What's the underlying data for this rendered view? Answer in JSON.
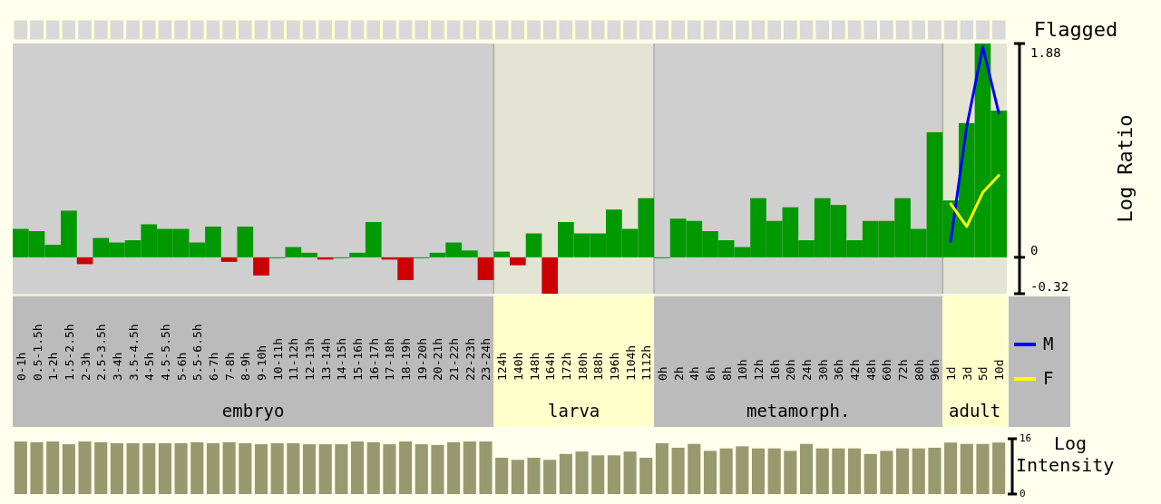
{
  "chart_data": [
    {
      "type": "bar",
      "ylabel": "Log Ratio",
      "categories": [
        "0-1h",
        "0.5-1.5h",
        "1-2h",
        "1.5-2.5h",
        "2-3h",
        "2.5-3.5h",
        "3-4h",
        "3.5-4.5h",
        "4-5h",
        "4.5-5.5h",
        "5-6h",
        "5.5-6.5h",
        "6-7h",
        "7-8h",
        "8-9h",
        "9-10h",
        "10-11h",
        "11-12h",
        "12-13h",
        "13-14h",
        "14-15h",
        "15-16h",
        "16-17h",
        "17-18h",
        "18-19h",
        "19-20h",
        "20-21h",
        "21-22h",
        "22-23h",
        "23-24h",
        "124h",
        "140h",
        "148h",
        "164h",
        "172h",
        "180h",
        "188h",
        "196h",
        "1104h",
        "1112h",
        "0h",
        "2h",
        "4h",
        "6h",
        "8h",
        "10h",
        "12h",
        "16h",
        "20h",
        "24h",
        "30h",
        "36h",
        "42h",
        "48h",
        "60h",
        "72h",
        "80h",
        "96h",
        "1d",
        "3d",
        "5d",
        "10d"
      ],
      "series": [
        {
          "type": "bar",
          "values": [
            0.25,
            0.23,
            0.11,
            0.41,
            -0.06,
            0.17,
            0.13,
            0.15,
            0.29,
            0.25,
            0.25,
            0.13,
            0.27,
            -0.04,
            0.27,
            -0.16,
            0,
            0.09,
            0.04,
            -0.02,
            0,
            0.04,
            0.31,
            -0.02,
            -0.2,
            0,
            0.04,
            0.13,
            0.06,
            -0.2,
            0.05,
            -0.07,
            0.21,
            -0.32,
            0.31,
            0.21,
            0.21,
            0.42,
            0.25,
            0.52,
            0,
            0.34,
            0.32,
            0.23,
            0.15,
            0.09,
            0.52,
            0.32,
            0.44,
            0.15,
            0.52,
            0.46,
            0.15,
            0.32,
            0.32,
            0.52,
            0.25,
            1.1,
            0.5,
            1.18,
            1.88,
            1.29
          ],
          "colors": [
            "#009900",
            "#009900",
            "#009900",
            "#009900",
            "#cc0000",
            "#009900",
            "#009900",
            "#009900",
            "#009900",
            "#009900",
            "#009900",
            "#009900",
            "#009900",
            "#cc0000",
            "#009900",
            "#cc0000",
            "#009900",
            "#009900",
            "#009900",
            "#cc0000",
            "#009900",
            "#009900",
            "#009900",
            "#cc0000",
            "#cc0000",
            "#009900",
            "#009900",
            "#009900",
            "#009900",
            "#cc0000",
            "#009900",
            "#cc0000",
            "#009900",
            "#cc0000",
            "#009900",
            "#009900",
            "#009900",
            "#009900",
            "#009900",
            "#009900",
            "#009900",
            "#009900",
            "#009900",
            "#009900",
            "#009900",
            "#009900",
            "#009900",
            "#009900",
            "#009900",
            "#009900",
            "#009900",
            "#009900",
            "#009900",
            "#009900",
            "#009900",
            "#009900",
            "#009900",
            "#009900",
            "#009900",
            "#009900",
            "#009900",
            "#009900"
          ]
        },
        {
          "type": "line",
          "name": "M",
          "color": "#0000ff",
          "values": [
            null,
            null,
            null,
            null,
            null,
            null,
            null,
            null,
            null,
            null,
            null,
            null,
            null,
            null,
            null,
            null,
            null,
            null,
            null,
            null,
            null,
            null,
            null,
            null,
            null,
            null,
            null,
            null,
            null,
            null,
            null,
            null,
            null,
            null,
            null,
            null,
            null,
            null,
            null,
            null,
            null,
            null,
            null,
            null,
            null,
            null,
            null,
            null,
            null,
            null,
            null,
            null,
            null,
            null,
            null,
            null,
            null,
            null,
            0.14,
            1.15,
            1.85,
            1.27
          ]
        },
        {
          "type": "line",
          "name": "F",
          "color": "#ffff00",
          "values": [
            null,
            null,
            null,
            null,
            null,
            null,
            null,
            null,
            null,
            null,
            null,
            null,
            null,
            null,
            null,
            null,
            null,
            null,
            null,
            null,
            null,
            null,
            null,
            null,
            null,
            null,
            null,
            null,
            null,
            null,
            null,
            null,
            null,
            null,
            null,
            null,
            null,
            null,
            null,
            null,
            null,
            null,
            null,
            null,
            null,
            null,
            null,
            null,
            null,
            null,
            null,
            null,
            null,
            null,
            null,
            null,
            null,
            null,
            0.47,
            0.27,
            0.57,
            0.72
          ]
        }
      ],
      "ylim": [
        -0.32,
        1.88
      ],
      "yticks": [
        -0.32,
        0,
        1.88
      ],
      "grid": false,
      "legend": "right",
      "annotations": [
        "Flagged"
      ],
      "bands": [
        {
          "axis": "x",
          "from": "0-1h",
          "to": "23-24h",
          "label": "embryo",
          "color": "#bbbbbb"
        },
        {
          "axis": "x",
          "from": "124h",
          "to": "1112h",
          "label": "larva",
          "color": "#ffffcc"
        },
        {
          "axis": "x",
          "from": "0h",
          "to": "96h",
          "label": "metamorph.",
          "color": "#bbbbbb"
        },
        {
          "axis": "x",
          "from": "1d",
          "to": "10d",
          "label": "adult",
          "color": "#ffffcc"
        }
      ]
    },
    {
      "type": "bar",
      "ylabel": "Log Intensity",
      "categories": [
        null,
        null,
        null,
        null,
        null,
        null,
        null,
        null,
        null,
        null,
        null,
        null,
        null,
        null,
        null,
        null,
        null,
        null,
        null,
        null,
        null,
        null,
        null,
        null,
        null,
        null,
        null,
        null,
        null,
        null,
        null,
        null,
        null,
        null,
        null,
        null,
        null,
        null,
        null,
        null,
        null,
        null,
        null,
        null,
        null,
        null,
        null,
        null,
        null,
        null,
        null,
        null,
        null,
        null,
        null,
        null,
        null,
        null,
        null,
        null,
        null,
        null
      ],
      "values": [
        15.2,
        15.0,
        15.2,
        14.4,
        15.2,
        15.0,
        14.7,
        14.7,
        14.7,
        14.7,
        14.7,
        15.0,
        14.7,
        15.0,
        14.7,
        14.4,
        14.7,
        14.7,
        14.4,
        14.4,
        14.4,
        15.2,
        15.0,
        14.4,
        15.2,
        14.4,
        14.2,
        15.0,
        15.2,
        15.2,
        10.5,
        9.9,
        10.5,
        9.9,
        11.6,
        12.3,
        11.2,
        11.2,
        12.3,
        10.5,
        14.7,
        13.4,
        14.5,
        12.5,
        13.2,
        13.8,
        13.2,
        13.2,
        12.5,
        14.5,
        13.2,
        13.2,
        13.2,
        11.6,
        12.5,
        13.2,
        13.2,
        13.4,
        14.9,
        14.5,
        14.5,
        14.9
      ],
      "color": "#999970",
      "ylim": [
        0,
        16
      ],
      "yticks": [
        0,
        16
      ],
      "tick_labels": "y",
      "grid": false
    }
  ]
}
